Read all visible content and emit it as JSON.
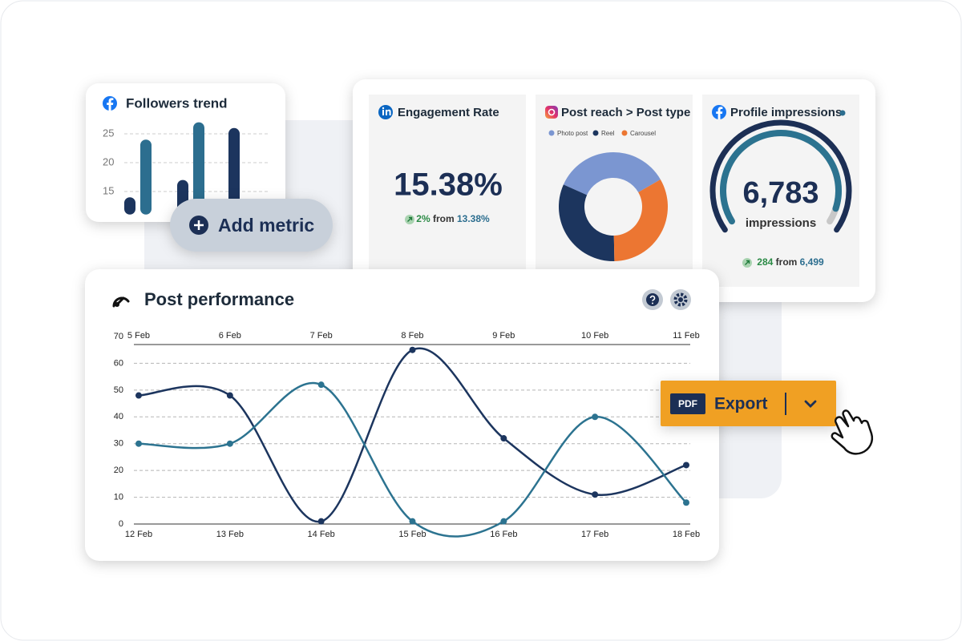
{
  "followers_trend": {
    "title": "Followers trend",
    "type": "bar",
    "values": [
      14,
      24,
      17,
      27,
      26
    ],
    "colors": [
      "#1c355e",
      "#2c6e8f",
      "#1c355e",
      "#2c6e8f",
      "#1c355e"
    ],
    "ylim": [
      11,
      28
    ],
    "yticks": [
      15,
      20,
      25
    ],
    "grid": true
  },
  "engagement_rate": {
    "title": "Engagement Rate",
    "value": "15.38%",
    "change": "2%",
    "from_label": "from",
    "previous": "13.38%"
  },
  "post_reach": {
    "title": "Post reach > Post type",
    "type": "pie",
    "categories": [
      "Photo post",
      "Reel",
      "Carousel"
    ],
    "values": [
      35,
      32,
      33
    ],
    "colors": [
      "#7b96d1",
      "#1c355e",
      "#ec7632"
    ]
  },
  "profile_impressions": {
    "title": "Profile impressions",
    "value": "6,783",
    "unit": "impressions",
    "change": "284",
    "from_label": "from",
    "previous": "6,499"
  },
  "add_metric": {
    "label": "Add metric"
  },
  "post_performance": {
    "title": "Post performance",
    "type": "line",
    "categories": [
      "12 Feb",
      "13 Feb",
      "14 Feb",
      "15 Feb",
      "16 Feb",
      "17 Feb",
      "18 Feb"
    ],
    "secondary_categories": [
      "5 Feb",
      "6 Feb",
      "7 Feb",
      "8 Feb",
      "9 Feb",
      "10 Feb",
      "11 Feb"
    ],
    "ylim": [
      0,
      70
    ],
    "yticks": [
      0,
      10,
      20,
      30,
      40,
      50,
      60,
      70
    ],
    "grid": true,
    "series": [
      {
        "color": "#1c355e",
        "values": [
          48,
          48,
          1,
          65,
          32,
          11,
          22
        ]
      },
      {
        "color": "#2c7390",
        "values": [
          30,
          30,
          52,
          1,
          1,
          40,
          8
        ]
      }
    ]
  },
  "export": {
    "badge": "PDF",
    "label": "Export"
  }
}
